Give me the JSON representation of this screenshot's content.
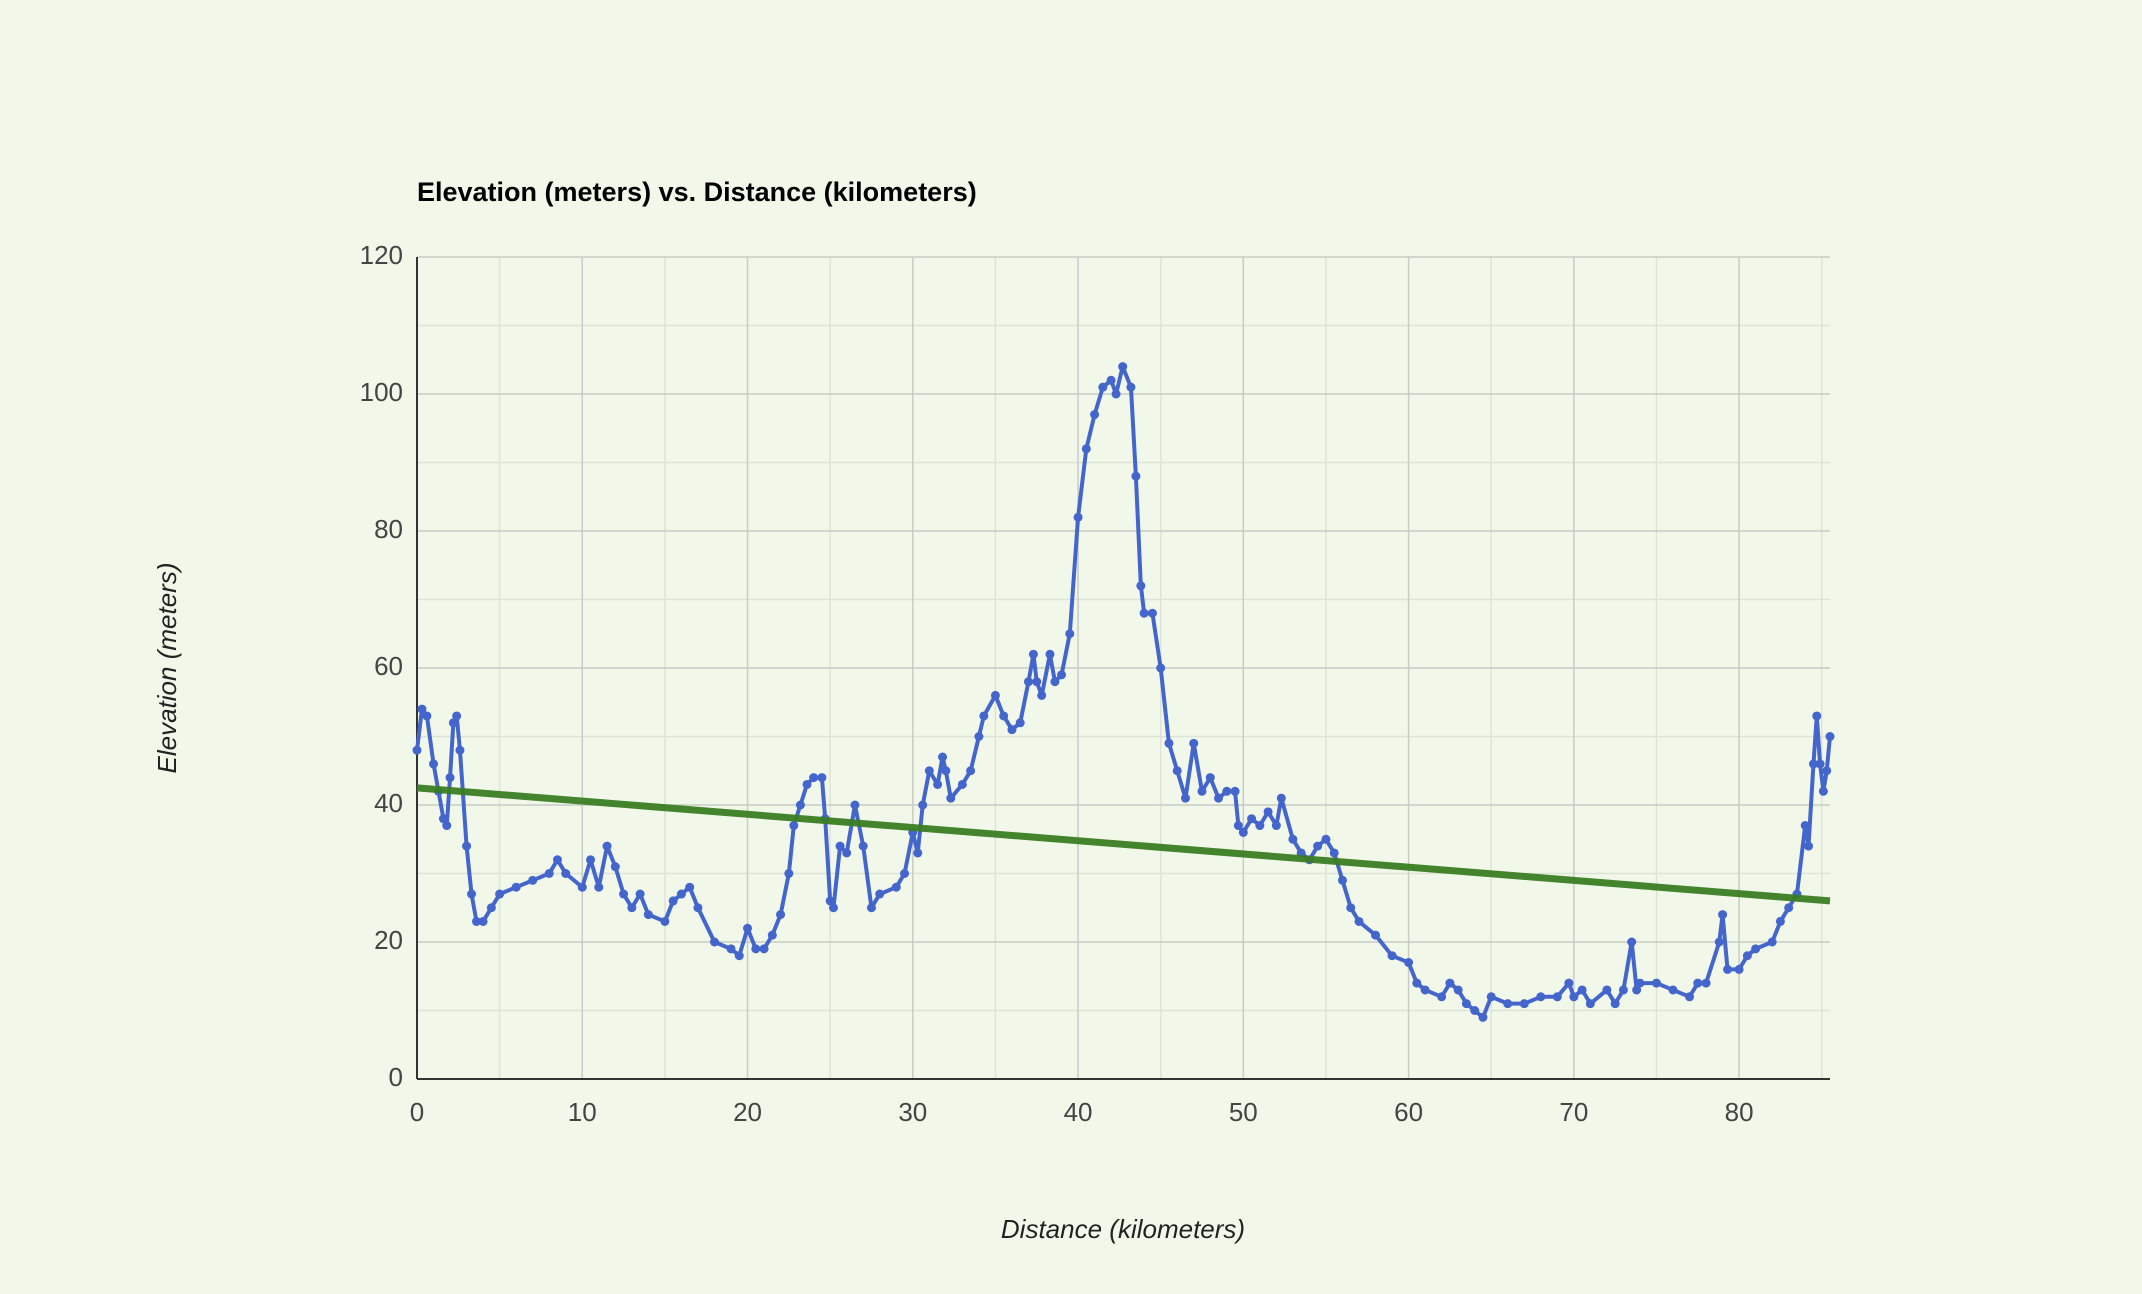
{
  "chart_data": {
    "type": "line",
    "title": "Elevation (meters) vs. Distance (kilometers)",
    "x_label": "Distance (kilometers)",
    "y_label": "Elevation (meters)",
    "xlim": [
      0,
      85.5
    ],
    "xticks": [
      0,
      10,
      20,
      30,
      40,
      50,
      60,
      70,
      80
    ],
    "ylim": [
      0,
      120
    ],
    "yticks": [
      0,
      20,
      40,
      60,
      80,
      100,
      120
    ],
    "grid": true,
    "series": [
      {
        "color": "#4466cc",
        "markers": true,
        "x": [
          0,
          0.3,
          0.6,
          1,
          1.3,
          1.6,
          1.8,
          2,
          2.2,
          2.4,
          2.6,
          3,
          3.3,
          3.6,
          4,
          4.5,
          5,
          6,
          7,
          8,
          8.5,
          9,
          10,
          10.5,
          11,
          11.5,
          12,
          12.5,
          13,
          13.5,
          14,
          15,
          15.5,
          16,
          16.5,
          17,
          18,
          19,
          19.5,
          20,
          20.5,
          21,
          21.5,
          22,
          22.5,
          22.8,
          23.2,
          23.6,
          24,
          24.5,
          24.7,
          25,
          25.2,
          25.6,
          26,
          26.5,
          27,
          27.5,
          28,
          29,
          29.5,
          30,
          30.3,
          30.6,
          31,
          31.5,
          31.8,
          32,
          32.3,
          33,
          33.5,
          34,
          34.3,
          35,
          35.5,
          36,
          36.5,
          37,
          37.3,
          37.5,
          37.8,
          38.3,
          38.6,
          39,
          39.5,
          40,
          40.5,
          41,
          41.5,
          42,
          42.3,
          42.7,
          43.2,
          43.5,
          43.8,
          44,
          44.5,
          45,
          45.5,
          46,
          46.5,
          47,
          47.5,
          48,
          48.5,
          49,
          49.5,
          49.7,
          50,
          50.5,
          51,
          51.5,
          52,
          52.3,
          53,
          53.5,
          54,
          54.5,
          55,
          55.5,
          56,
          56.5,
          57,
          58,
          59,
          60,
          60.5,
          61,
          62,
          62.5,
          63,
          63.5,
          64,
          64.5,
          65,
          66,
          67,
          68,
          69,
          69.7,
          70,
          70.5,
          71,
          72,
          72.5,
          73,
          73.5,
          73.8,
          74,
          75,
          76,
          77,
          77.5,
          78,
          78.8,
          79,
          79.3,
          80,
          80.5,
          81,
          82,
          82.5,
          83,
          83.5,
          84,
          84.2,
          84.5,
          84.7,
          84.9,
          85.1,
          85.3,
          85.5
        ],
        "values": [
          48,
          54,
          53,
          46,
          42,
          38,
          37,
          44,
          52,
          53,
          48,
          34,
          27,
          23,
          23,
          25,
          27,
          28,
          29,
          30,
          32,
          30,
          28,
          32,
          28,
          34,
          31,
          27,
          25,
          27,
          24,
          23,
          26,
          27,
          28,
          25,
          20,
          19,
          18,
          22,
          19,
          19,
          21,
          24,
          30,
          37,
          40,
          43,
          44,
          44,
          38,
          26,
          25,
          34,
          33,
          40,
          34,
          25,
          27,
          28,
          30,
          36,
          33,
          40,
          45,
          43,
          47,
          45,
          41,
          43,
          45,
          50,
          53,
          56,
          53,
          51,
          52,
          58,
          62,
          58,
          56,
          62,
          58,
          59,
          65,
          82,
          92,
          97,
          101,
          102,
          100,
          104,
          101,
          88,
          72,
          68,
          68,
          60,
          49,
          45,
          41,
          49,
          42,
          44,
          41,
          42,
          42,
          37,
          36,
          38,
          37,
          39,
          37,
          41,
          35,
          33,
          32,
          34,
          35,
          33,
          29,
          25,
          23,
          21,
          18,
          17,
          14,
          13,
          12,
          14,
          13,
          11,
          10,
          9,
          12,
          11,
          11,
          12,
          12,
          14,
          12,
          13,
          11,
          13,
          11,
          13,
          20,
          13,
          14,
          14,
          13,
          12,
          14,
          14,
          20,
          24,
          16,
          16,
          18,
          19,
          20,
          23,
          25,
          27,
          37,
          34,
          46,
          53,
          46,
          42,
          45,
          50
        ]
      },
      {
        "color": "#3a7d22",
        "markers": false,
        "x": [
          0,
          85.5
        ],
        "values": [
          42.5,
          26
        ]
      }
    ]
  }
}
